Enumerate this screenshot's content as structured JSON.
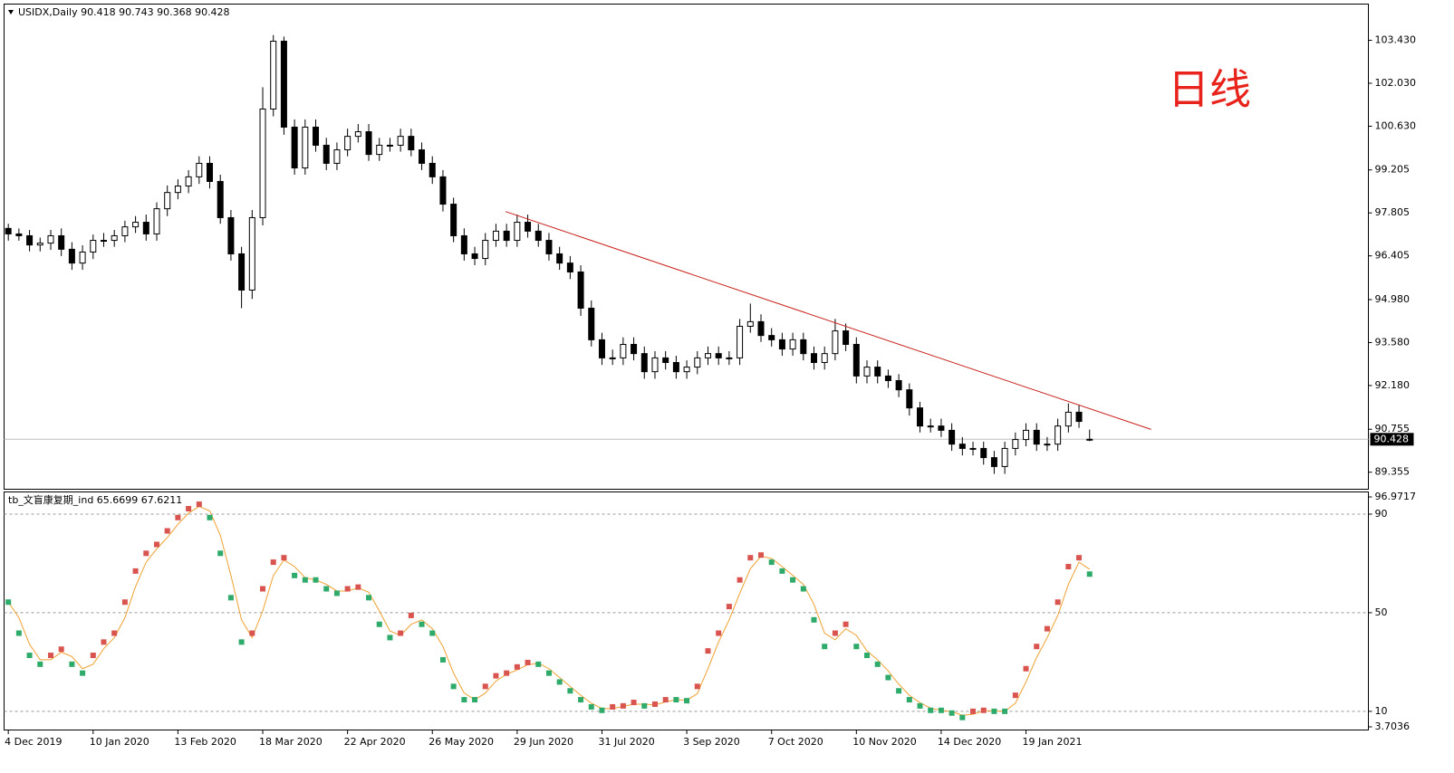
{
  "chart_data": [
    {
      "type": "candlestick",
      "title": "USIDX,Daily  90.418 90.743 90.368 90.428",
      "annotation": "日线",
      "bull_color": "#ffffff",
      "bear_color": "#000000",
      "xlim": [
        -0.4,
        128.3
      ],
      "xticks": [
        {
          "value": 0,
          "label": "4 Dec 2019"
        },
        {
          "value": 8,
          "label": "10 Jan 2020"
        },
        {
          "value": 16,
          "label": "13 Feb 2020"
        },
        {
          "value": 24,
          "label": "18 Mar 2020"
        },
        {
          "value": 32,
          "label": "22 Apr 2020"
        },
        {
          "value": 40,
          "label": "26 May 2020"
        },
        {
          "value": 48,
          "label": "29 Jun 2020"
        },
        {
          "value": 56,
          "label": "31 Jul 2020"
        },
        {
          "value": 64,
          "label": "3 Sep 2020"
        },
        {
          "value": 72,
          "label": "7 Oct 2020"
        },
        {
          "value": 80,
          "label": "10 Nov 2020"
        },
        {
          "value": 88,
          "label": "14 Dec 2020"
        },
        {
          "value": 96,
          "label": "19 Jan 2021"
        }
      ],
      "ylim": [
        88.8,
        104.61
      ],
      "yticks": [
        {
          "value": 103.43,
          "label": "103.430"
        },
        {
          "value": 102.03,
          "label": "102.030"
        },
        {
          "value": 100.63,
          "label": "100.630"
        },
        99.205,
        97.805,
        96.405,
        {
          "value": 94.98,
          "label": "94.980"
        },
        {
          "value": 93.58,
          "label": "93.580"
        },
        {
          "value": 92.18,
          "label": "92.180"
        },
        90.755,
        89.355
      ],
      "last_price": 90.428,
      "trendline": {
        "color": "#c8201a",
        "x": [
          46.9,
          107.8
        ],
        "y": [
          97.85,
          90.75
        ]
      },
      "open": [
        97.3,
        97.12,
        97.06,
        96.76,
        96.82,
        97.06,
        96.62,
        96.17,
        96.53,
        96.91,
        96.91,
        97.06,
        97.35,
        97.5,
        97.12,
        97.94,
        98.47,
        98.68,
        98.98,
        99.42,
        98.83,
        97.65,
        96.47,
        95.29,
        97.65,
        101.19,
        103.4,
        100.6,
        99.27,
        100.6,
        100.01,
        99.42,
        99.86,
        100.3,
        100.45,
        99.71,
        100.01,
        100.01,
        100.3,
        99.86,
        99.42,
        98.98,
        98.09,
        97.06,
        96.47,
        96.32,
        96.91,
        97.21,
        96.91,
        97.5,
        97.21,
        96.91,
        96.47,
        96.17,
        95.88,
        94.7,
        93.67,
        93.08,
        93.08,
        93.52,
        93.22,
        92.63,
        93.08,
        92.93,
        92.63,
        92.78,
        93.08,
        93.22,
        93.08,
        93.08,
        94.11,
        94.26,
        93.81,
        93.67,
        93.37,
        93.67,
        93.22,
        92.93,
        93.22,
        93.96,
        93.52,
        92.49,
        92.78,
        92.49,
        92.34,
        92.04,
        91.45,
        90.86,
        90.86,
        90.72,
        90.27,
        90.13,
        90.13,
        89.83,
        89.54,
        90.13,
        90.42,
        90.72,
        90.27,
        90.27,
        90.86,
        91.31,
        90.418
      ],
      "high": [
        97.45,
        97.3,
        97.25,
        97.0,
        97.25,
        97.3,
        96.85,
        96.75,
        97.1,
        97.15,
        97.25,
        97.55,
        97.7,
        97.75,
        98.15,
        98.7,
        98.9,
        99.2,
        99.65,
        99.65,
        99.05,
        97.9,
        96.7,
        97.9,
        101.9,
        103.6,
        103.55,
        100.85,
        100.85,
        100.85,
        100.25,
        100.1,
        100.55,
        100.7,
        100.7,
        100.25,
        100.25,
        100.55,
        100.55,
        100.1,
        99.65,
        99.2,
        98.3,
        97.3,
        96.7,
        97.15,
        97.45,
        97.45,
        97.75,
        97.75,
        97.45,
        97.15,
        96.7,
        96.4,
        96.1,
        94.95,
        93.9,
        93.35,
        93.75,
        93.75,
        93.45,
        93.3,
        93.3,
        93.15,
        93.0,
        93.3,
        93.45,
        93.45,
        93.3,
        94.35,
        94.85,
        94.5,
        94.05,
        93.9,
        93.9,
        93.9,
        93.45,
        93.45,
        94.35,
        94.2,
        93.75,
        93.0,
        93.0,
        92.7,
        92.55,
        92.25,
        91.65,
        91.1,
        91.1,
        90.95,
        90.5,
        90.35,
        90.35,
        90.05,
        90.35,
        90.65,
        90.95,
        90.95,
        90.5,
        91.1,
        91.6,
        91.55,
        90.743
      ],
      "low": [
        96.9,
        96.9,
        96.55,
        96.55,
        96.6,
        96.4,
        95.95,
        95.95,
        96.3,
        96.7,
        96.7,
        96.85,
        97.15,
        96.9,
        96.9,
        97.7,
        98.25,
        98.45,
        98.75,
        98.6,
        97.45,
        96.25,
        94.7,
        95.0,
        97.4,
        100.95,
        100.35,
        99.05,
        99.05,
        99.8,
        99.2,
        99.2,
        99.65,
        100.1,
        99.5,
        99.5,
        99.8,
        99.8,
        99.65,
        99.2,
        98.75,
        97.85,
        96.85,
        96.25,
        96.1,
        96.1,
        96.7,
        96.7,
        96.7,
        97.0,
        96.7,
        96.25,
        95.95,
        95.65,
        94.45,
        93.45,
        92.85,
        92.85,
        92.85,
        93.0,
        92.4,
        92.4,
        92.7,
        92.4,
        92.4,
        92.55,
        92.85,
        92.85,
        92.85,
        92.85,
        93.9,
        93.6,
        93.45,
        93.15,
        93.15,
        93.0,
        92.7,
        92.7,
        93.0,
        93.3,
        92.25,
        92.25,
        92.25,
        92.1,
        91.8,
        91.2,
        90.65,
        90.65,
        90.5,
        90.05,
        89.9,
        89.9,
        89.6,
        89.3,
        89.3,
        89.9,
        90.2,
        90.05,
        90.05,
        90.05,
        90.65,
        90.8,
        90.368
      ],
      "close": [
        97.12,
        97.06,
        96.76,
        96.82,
        97.06,
        96.62,
        96.17,
        96.53,
        96.91,
        96.91,
        97.06,
        97.35,
        97.5,
        97.12,
        97.94,
        98.47,
        98.68,
        98.98,
        99.42,
        98.83,
        97.65,
        96.47,
        95.29,
        97.65,
        101.19,
        103.4,
        100.6,
        99.27,
        100.6,
        100.01,
        99.42,
        99.86,
        100.3,
        100.45,
        99.71,
        100.01,
        100.01,
        100.3,
        99.86,
        99.42,
        98.98,
        98.09,
        97.06,
        96.47,
        96.32,
        96.91,
        97.21,
        96.91,
        97.5,
        97.21,
        96.91,
        96.47,
        96.17,
        95.88,
        94.7,
        93.67,
        93.08,
        93.08,
        93.52,
        93.22,
        92.63,
        93.08,
        92.93,
        92.63,
        92.78,
        93.08,
        93.22,
        93.08,
        93.08,
        94.11,
        94.26,
        93.81,
        93.67,
        93.37,
        93.67,
        93.22,
        92.93,
        93.22,
        93.96,
        93.52,
        92.49,
        92.78,
        92.49,
        92.34,
        92.04,
        91.45,
        90.86,
        90.86,
        90.72,
        90.27,
        90.13,
        90.13,
        89.83,
        89.54,
        90.13,
        90.42,
        90.72,
        90.27,
        90.27,
        90.86,
        91.31,
        91.01,
        90.428
      ]
    },
    {
      "type": "indicator",
      "title": "tb_文盲康复期_ind 65.6699 67.6211",
      "up_color": "#d9534f",
      "down_color": "#2eaa6a",
      "signal_color": "#f0a030",
      "ylim": [
        3.7036,
        96.9717
      ],
      "yticks": [
        96.9717,
        90,
        50,
        10,
        3.7036
      ],
      "levels": [
        90,
        50,
        10
      ],
      "values": [
        54.3,
        41.7,
        32.7,
        29.1,
        32.7,
        35.2,
        29.1,
        25.5,
        32.7,
        38.1,
        41.7,
        54.3,
        66.9,
        74.1,
        77.7,
        83.2,
        88.6,
        92.2,
        94.0,
        88.6,
        74.1,
        56.1,
        38.1,
        41.7,
        59.7,
        70.5,
        72.3,
        65.1,
        63.3,
        63.3,
        59.7,
        57.9,
        59.7,
        60.4,
        56.1,
        45.3,
        39.9,
        41.7,
        48.9,
        45.3,
        41.7,
        30.9,
        20.1,
        14.7,
        14.7,
        20.1,
        24.4,
        25.5,
        28.0,
        29.8,
        29.1,
        25.5,
        21.9,
        18.3,
        14.7,
        11.8,
        10.4,
        11.8,
        12.2,
        13.6,
        12.2,
        12.9,
        14.7,
        14.7,
        14.3,
        20.1,
        34.5,
        41.7,
        52.5,
        63.3,
        72.3,
        73.4,
        70.5,
        66.9,
        63.3,
        59.7,
        47.1,
        36.3,
        41.7,
        45.3,
        36.3,
        32.7,
        29.1,
        23.7,
        18.3,
        14.7,
        12.2,
        10.4,
        10.4,
        9.3,
        7.5,
        10.0,
        10.4,
        10.0,
        10.0,
        16.5,
        27.3,
        36.3,
        43.5,
        54.3,
        68.7,
        72.3,
        65.6699
      ],
      "signal": [
        54.3,
        48.0,
        37.2,
        30.9,
        30.9,
        34.0,
        32.2,
        27.3,
        29.1,
        35.4,
        39.9,
        48.0,
        60.6,
        70.5,
        75.9,
        80.5,
        85.9,
        90.4,
        93.1,
        91.3,
        81.4,
        65.1,
        47.1,
        39.9,
        50.7,
        65.1,
        71.4,
        68.7,
        64.2,
        63.3,
        61.5,
        58.8,
        58.8,
        60.1,
        58.3,
        50.7,
        42.6,
        40.8,
        45.3,
        47.1,
        43.5,
        36.3,
        25.5,
        17.4,
        14.7,
        17.4,
        22.3,
        25.0,
        26.8,
        28.9,
        29.5,
        27.3,
        23.7,
        20.1,
        16.5,
        13.3,
        11.1,
        11.1,
        12.0,
        12.9,
        12.9,
        12.6,
        13.8,
        14.7,
        14.5,
        17.2,
        27.3,
        38.1,
        47.1,
        57.9,
        67.8,
        72.9,
        72.0,
        68.7,
        65.1,
        61.5,
        53.4,
        41.7,
        39.0,
        43.5,
        40.8,
        34.5,
        30.9,
        26.4,
        21.0,
        16.5,
        13.5,
        11.3,
        10.4,
        9.9,
        8.4,
        8.8,
        10.2,
        10.2,
        10.0,
        13.3,
        21.9,
        31.8,
        39.9,
        48.9,
        61.5,
        70.5,
        67.6211
      ]
    }
  ]
}
